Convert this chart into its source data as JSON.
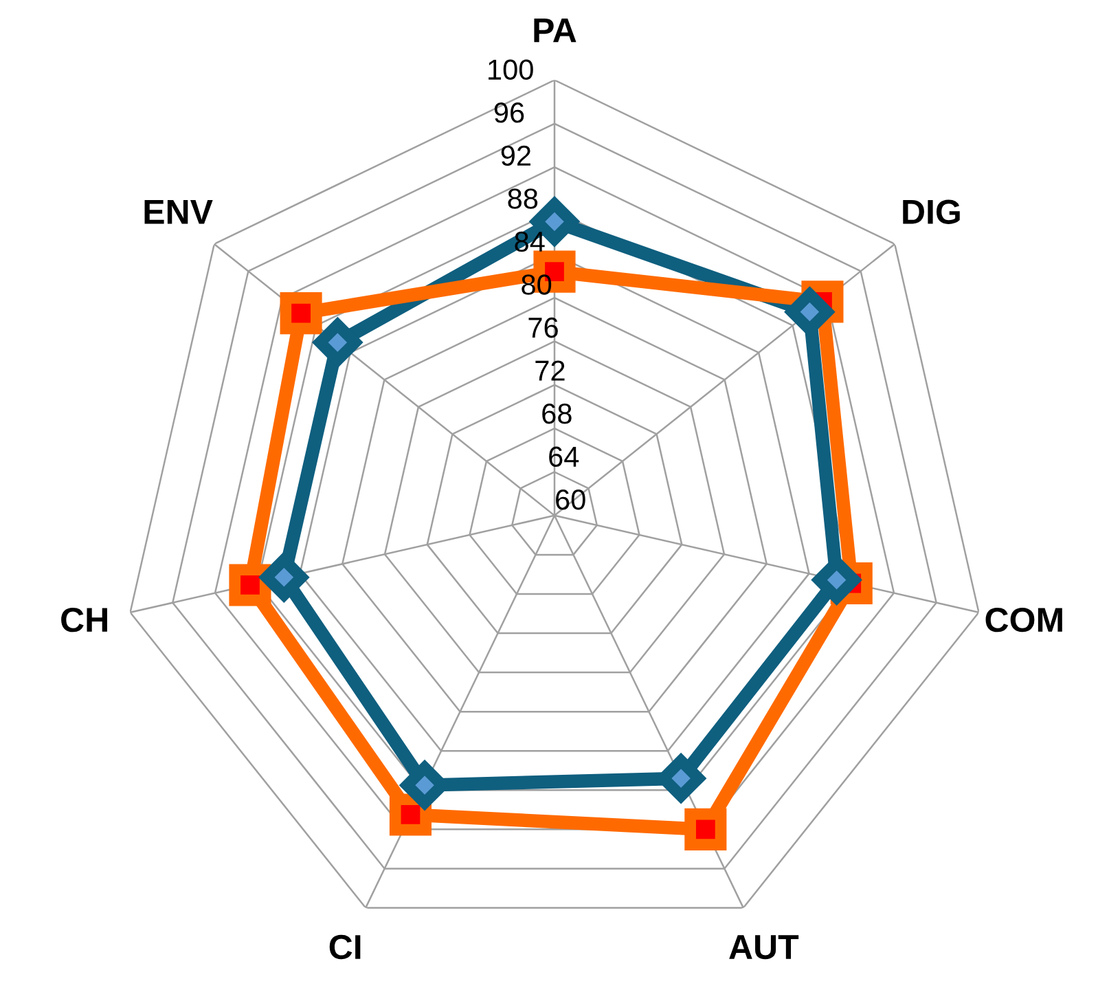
{
  "chart_data": {
    "type": "radar",
    "categories": [
      "PA",
      "DIG",
      "COM",
      "AUT",
      "CI",
      "CH",
      "ENV"
    ],
    "series": [
      {
        "color": "#0f5f7f",
        "marker": "diamond",
        "values": [
          87,
          90,
          86.6,
          86.8,
          87.5,
          85.5,
          85.5
        ]
      },
      {
        "color": "#ff6a00",
        "marker": "square",
        "values": [
          82.4,
          91.5,
          88,
          92,
          90.5,
          88.7,
          89.8
        ]
      }
    ],
    "ylim": [
      60,
      100
    ],
    "yticks": [
      60,
      64,
      68,
      72,
      76,
      80,
      84,
      88,
      92,
      96,
      100
    ],
    "grid": true,
    "legend": false
  }
}
